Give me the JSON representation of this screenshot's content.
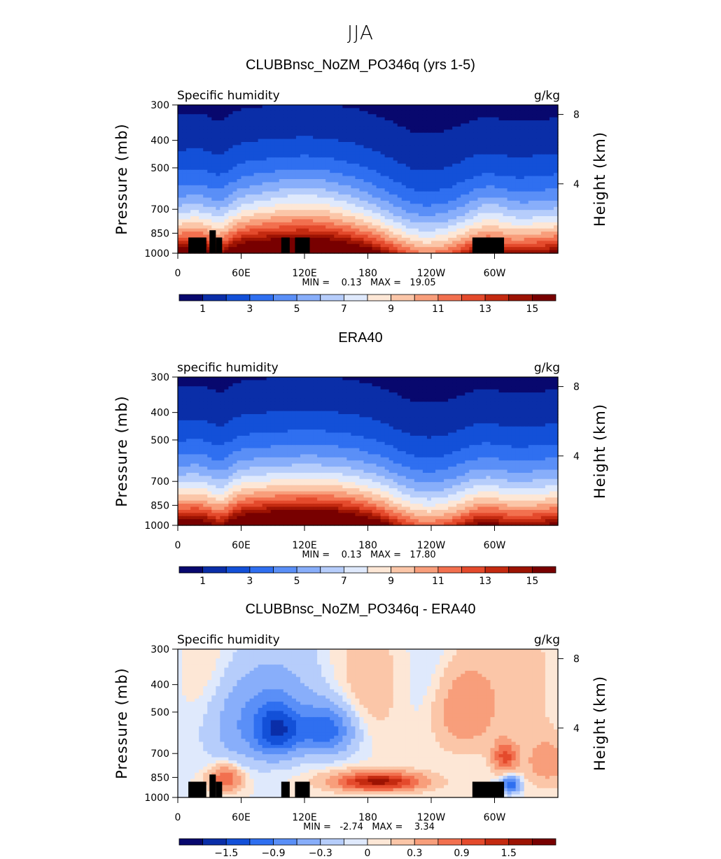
{
  "page_title": "JJA",
  "colors": {
    "seq_levels": [
      "#08086e",
      "#0a2ea8",
      "#1350d8",
      "#2f6ff0",
      "#5a8ff7",
      "#88aefa",
      "#b6cdfb",
      "#dfe9fc",
      "#fde7d6",
      "#fbc6a8",
      "#f89e7b",
      "#f2704f",
      "#e44a2c",
      "#c42a10",
      "#9c1303",
      "#780000"
    ],
    "diff_levels": [
      "#08086e",
      "#0a2ea8",
      "#1350d8",
      "#2f6ff0",
      "#5a8ff7",
      "#88aefa",
      "#b6cdfb",
      "#dfe9fc",
      "#fde7d6",
      "#fbc6a8",
      "#f89e7b",
      "#f2704f",
      "#e44a2c",
      "#c42a10",
      "#9c1303",
      "#780000"
    ],
    "topography": "#000000"
  },
  "chart_data": [
    {
      "type": "heatmap",
      "title": "CLUBBnsc_NoZM_PO346q (yrs 1-5)",
      "left_label": "Specific humidity",
      "right_label": "g/kg",
      "ylabel": "Pressure (mb)",
      "y2label": "Height (km)",
      "x_ticks": [
        "0",
        "60E",
        "120E",
        "180",
        "120W",
        "60W"
      ],
      "x_tick_lon": [
        0,
        60,
        120,
        180,
        240,
        300
      ],
      "xlim": [
        0,
        360
      ],
      "y_ticks": [
        "300",
        "400",
        "500",
        "700",
        "850",
        "1000"
      ],
      "y_tick_p": [
        300,
        400,
        500,
        700,
        850,
        1000
      ],
      "ylim": [
        1000,
        300
      ],
      "y_scale": "log",
      "y2_ticks": [
        "8",
        "4"
      ],
      "y2_tick_km": [
        8,
        4
      ],
      "stats": "MIN =    0.13   MAX =   19.05",
      "colorbar_labels": [
        "1",
        "3",
        "5",
        "7",
        "9",
        "11",
        "13",
        "15"
      ],
      "colorbar_levels": [
        1,
        2,
        3,
        4,
        5,
        6,
        7,
        8,
        9,
        10,
        11,
        12,
        13,
        14,
        15
      ],
      "field": "model",
      "topography": true
    },
    {
      "type": "heatmap",
      "title": "ERA40",
      "left_label": "specific humidity",
      "right_label": "g/kg",
      "ylabel": "Pressure (mb)",
      "y2label": "Height (km)",
      "x_ticks": [
        "0",
        "60E",
        "120E",
        "180",
        "120W",
        "60W"
      ],
      "x_tick_lon": [
        0,
        60,
        120,
        180,
        240,
        300
      ],
      "xlim": [
        0,
        360
      ],
      "y_ticks": [
        "300",
        "400",
        "500",
        "700",
        "850",
        "1000"
      ],
      "y_tick_p": [
        300,
        400,
        500,
        700,
        850,
        1000
      ],
      "ylim": [
        1000,
        300
      ],
      "y_scale": "log",
      "y2_ticks": [
        "8",
        "4"
      ],
      "y2_tick_km": [
        8,
        4
      ],
      "stats": "MIN =    0.13   MAX =   17.80",
      "colorbar_labels": [
        "1",
        "3",
        "5",
        "7",
        "9",
        "11",
        "13",
        "15"
      ],
      "colorbar_levels": [
        1,
        2,
        3,
        4,
        5,
        6,
        7,
        8,
        9,
        10,
        11,
        12,
        13,
        14,
        15
      ],
      "field": "obs",
      "topography": false
    },
    {
      "type": "heatmap",
      "title": "CLUBBnsc_NoZM_PO346q - ERA40",
      "left_label": "Specific humidity",
      "right_label": "g/kg",
      "ylabel": "Pressure (mb)",
      "y2label": "Height (km)",
      "x_ticks": [
        "0",
        "60E",
        "120E",
        "180",
        "120W",
        "60W"
      ],
      "x_tick_lon": [
        0,
        60,
        120,
        180,
        240,
        300
      ],
      "xlim": [
        0,
        360
      ],
      "y_ticks": [
        "300",
        "400",
        "500",
        "700",
        "850",
        "1000"
      ],
      "y_tick_p": [
        300,
        400,
        500,
        700,
        850,
        1000
      ],
      "ylim": [
        1000,
        300
      ],
      "y_scale": "log",
      "y2_ticks": [
        "8",
        "4"
      ],
      "y2_tick_km": [
        8,
        4
      ],
      "stats": "MIN =   -2.74   MAX =    3.34",
      "colorbar_labels": [
        "-1.5",
        "-0.9",
        "-0.3",
        "0",
        "0.3",
        "0.9",
        "1.5"
      ],
      "colorbar_levels": [
        -1.8,
        -1.5,
        -1.2,
        -0.9,
        -0.6,
        -0.3,
        -0.1,
        0,
        0.1,
        0.3,
        0.6,
        0.9,
        1.2,
        1.5,
        1.8
      ],
      "field": "diff",
      "topography": true
    }
  ]
}
